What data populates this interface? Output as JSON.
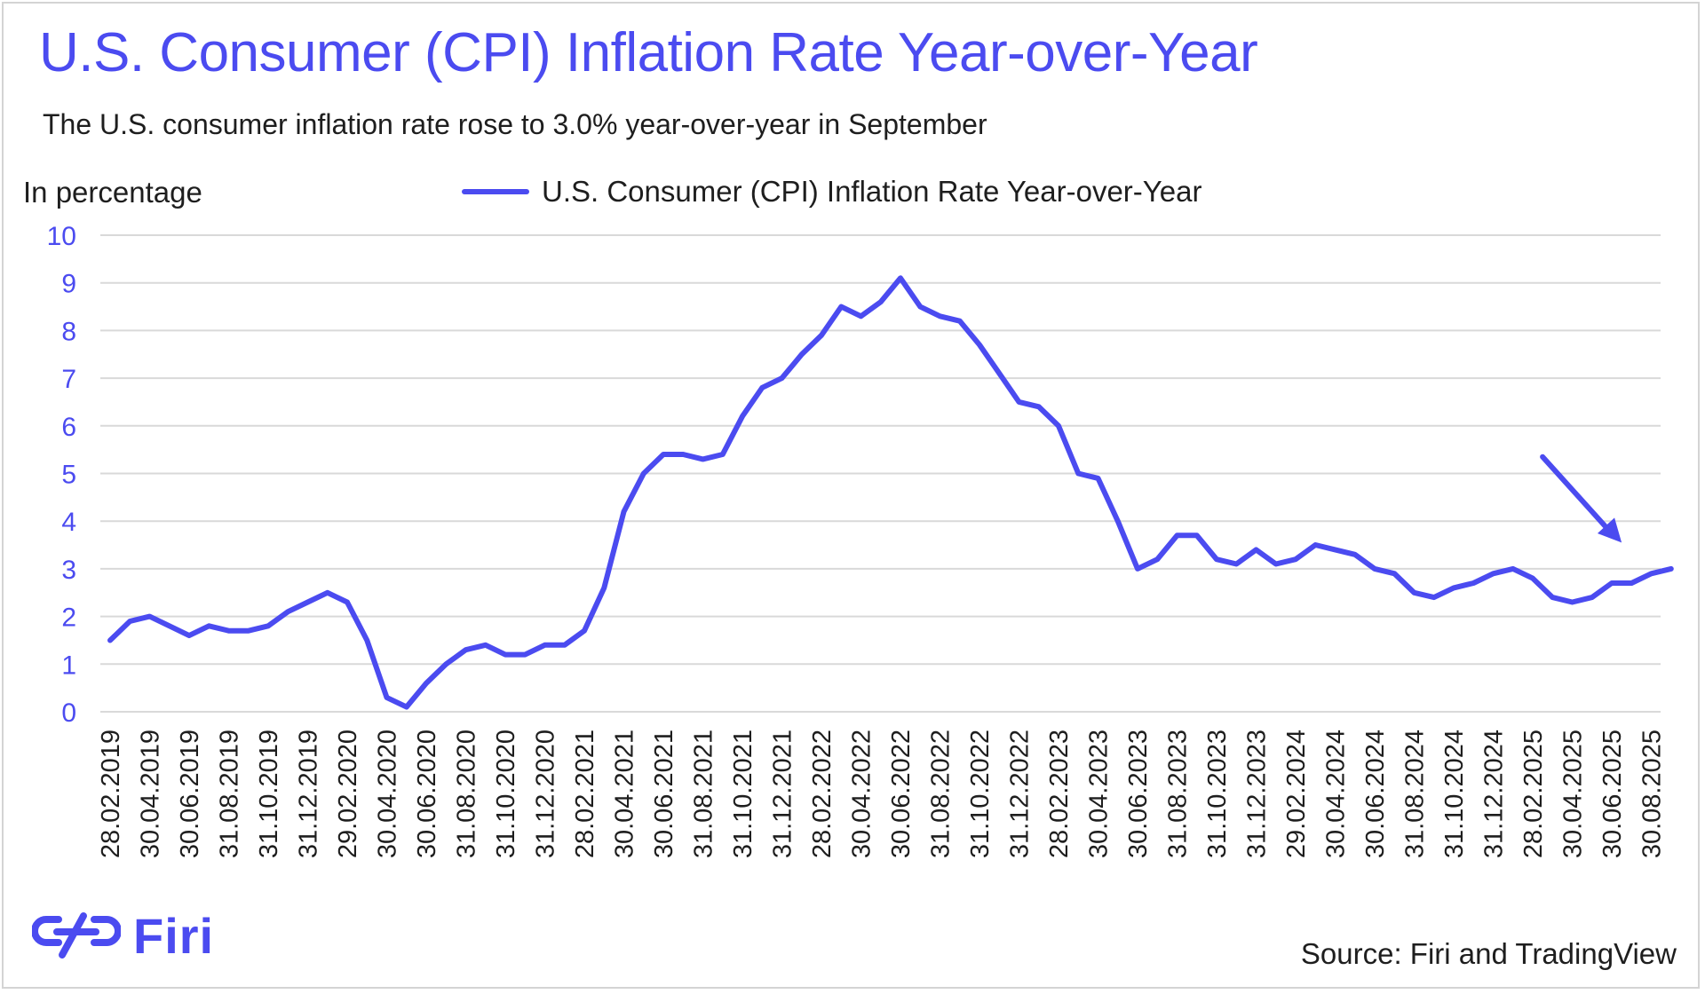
{
  "title": "U.S. Consumer (CPI) Inflation Rate Year-over-Year",
  "subtitle": "The U.S. consumer inflation rate rose to 3.0% year-over-year in September",
  "source": "Source: Firi and TradingView",
  "brand": {
    "name": "Firi",
    "color": "#4b4bf0",
    "icon": "firi-logo-icon"
  },
  "chart_data": {
    "type": "line",
    "ylabel": "In percentage",
    "xlabel": "",
    "ylim": [
      0,
      10
    ],
    "yticks": [
      "0",
      "1",
      "2",
      "3",
      "4",
      "5",
      "6",
      "7",
      "8",
      "9",
      "10"
    ],
    "grid": true,
    "legend_position": "top-center",
    "xtick_labels": [
      "28.02.2019",
      "30.04.2019",
      "30.06.2019",
      "31.08.2019",
      "31.10.2019",
      "31.12.2019",
      "29.02.2020",
      "30.04.2020",
      "30.06.2020",
      "31.08.2020",
      "31.10.2020",
      "31.12.2020",
      "28.02.2021",
      "30.04.2021",
      "30.06.2021",
      "31.08.2021",
      "31.10.2021",
      "31.12.2021",
      "28.02.2022",
      "30.04.2022",
      "30.06.2022",
      "31.08.2022",
      "31.10.2022",
      "31.12.2022",
      "28.02.2023",
      "30.04.2023",
      "30.06.2023",
      "31.08.2023",
      "31.10.2023",
      "31.12.2023",
      "29.02.2024",
      "30.04.2024",
      "30.06.2024",
      "31.08.2024",
      "31.10.2024",
      "31.12.2024",
      "28.02.2025",
      "30.04.2025",
      "30.06.2025",
      "30.08.2025"
    ],
    "series": [
      {
        "name": "U.S. Consumer (CPI) Inflation Rate Year-over-Year",
        "color": "#4b4bf0",
        "start_month": "2019-02",
        "values": [
          1.5,
          1.9,
          2.0,
          1.8,
          1.6,
          1.8,
          1.7,
          1.7,
          1.8,
          2.1,
          2.3,
          2.5,
          2.3,
          1.5,
          0.3,
          0.1,
          0.6,
          1.0,
          1.3,
          1.4,
          1.2,
          1.2,
          1.4,
          1.4,
          1.7,
          2.6,
          4.2,
          5.0,
          5.4,
          5.4,
          5.3,
          5.4,
          6.2,
          6.8,
          7.0,
          7.5,
          7.9,
          8.5,
          8.3,
          8.6,
          9.1,
          8.5,
          8.3,
          8.2,
          7.7,
          7.1,
          6.5,
          6.4,
          6.0,
          5.0,
          4.9,
          4.0,
          3.0,
          3.2,
          3.7,
          3.7,
          3.2,
          3.1,
          3.4,
          3.1,
          3.2,
          3.5,
          3.4,
          3.3,
          3.0,
          2.9,
          2.5,
          2.4,
          2.6,
          2.7,
          2.9,
          3.0,
          2.8,
          2.4,
          2.3,
          2.4,
          2.7,
          2.7,
          2.9,
          3.0
        ]
      }
    ],
    "annotations": [
      {
        "type": "arrow",
        "description": "downward trend arrow",
        "from_month_index": 72.5,
        "from_value": 5.35,
        "to_month_index": 76.5,
        "to_value": 3.55
      }
    ]
  }
}
